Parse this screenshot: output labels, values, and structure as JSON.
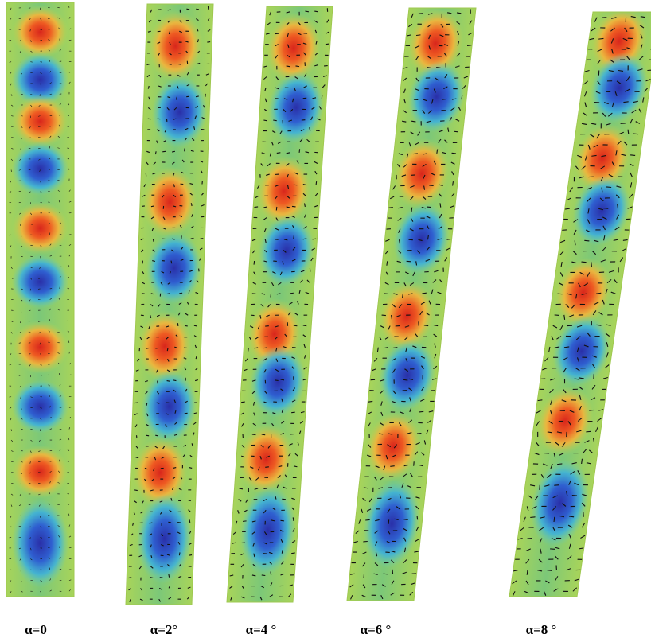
{
  "panels": [
    {
      "label": "α=0"
    },
    {
      "label": "α=2°"
    },
    {
      "label": "α=4 °"
    },
    {
      "label": "α=6 °"
    },
    {
      "label": "α=8 °"
    }
  ]
}
